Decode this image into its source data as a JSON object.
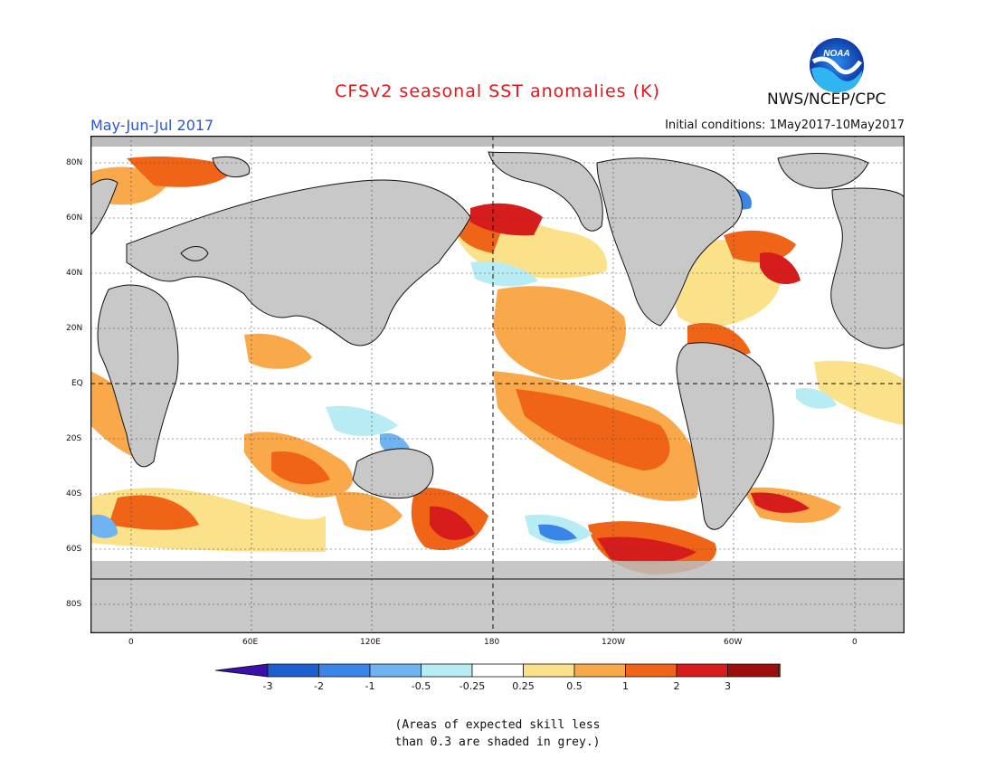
{
  "title": "CFSv2 seasonal SST anomalies (K)",
  "season": "May-Jun-Jul 2017",
  "initial_conditions": "Initial conditions: 1May2017-10May2017",
  "agency": "NWS/NCEP/CPC",
  "logo_text": "NOAA",
  "lat_labels": [
    "80N",
    "60N",
    "40N",
    "20N",
    "EQ",
    "20S",
    "40S",
    "60S",
    "80S"
  ],
  "lon_labels": [
    "0",
    "60E",
    "120E",
    "180",
    "120W",
    "60W",
    "0"
  ],
  "colorbar": {
    "labels": [
      "-3",
      "-2",
      "-1",
      "-0.5",
      "-0.25",
      "0.25",
      "0.5",
      "1",
      "2",
      "3"
    ],
    "colors": [
      "#3b0fa8",
      "#1d5fcf",
      "#3a86e8",
      "#6fb3f0",
      "#b8ecf4",
      "#ffffff",
      "#fbe28a",
      "#f9a94a",
      "#f06417",
      "#d71c1c",
      "#9c0d0d",
      "#6b4a3a"
    ]
  },
  "note_lines": [
    "(Areas of expected skill less",
    "than 0.3 are shaded in grey.)"
  ],
  "colors": {
    "land": "#c8c8c8",
    "ocean_neutral": "#ffffff",
    "low_skill_grey": "#bdbdbd",
    "title_red": "#e8141a",
    "season_blue": "#2456e3"
  }
}
